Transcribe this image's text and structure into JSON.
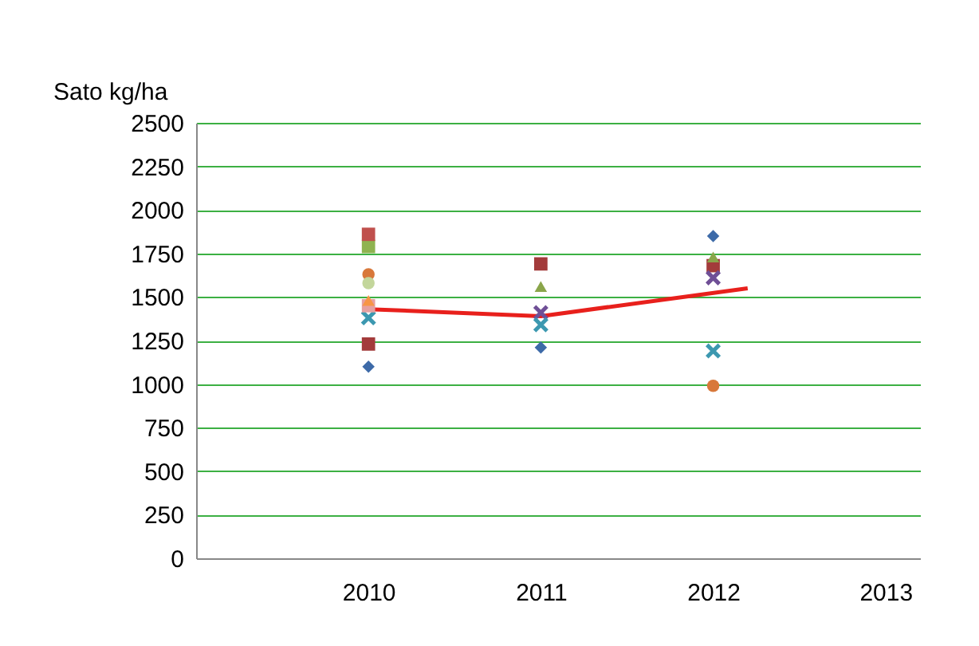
{
  "chart_data": {
    "type": "scatter",
    "ylabel": "Sato kg/ha",
    "xlim": [
      2009,
      2013.2
    ],
    "xticks": [
      2010,
      2011,
      2012,
      2013
    ],
    "ylim": [
      0,
      2500
    ],
    "yticks": [
      0,
      250,
      500,
      750,
      1000,
      1250,
      1500,
      1750,
      2000,
      2250,
      2500
    ],
    "grid": "y",
    "series": [
      {
        "color": "#3d6aa8",
        "marker": "diamond",
        "x": [
          2010,
          2011,
          2012
        ],
        "values": [
          1100,
          1210,
          1850
        ]
      },
      {
        "color": "#a33b3b",
        "marker": "square",
        "x": [
          2010,
          2011,
          2012
        ],
        "values": [
          1230,
          1690,
          1680
        ]
      },
      {
        "color": "#8aa54a",
        "marker": "triangle",
        "x": [
          2011,
          2012
        ],
        "values": [
          1560,
          1730
        ]
      },
      {
        "color": "#6f4f96",
        "marker": "cross",
        "x": [
          2011,
          2012
        ],
        "values": [
          1410,
          1610
        ]
      },
      {
        "color": "#3c98b0",
        "marker": "cross",
        "x": [
          2010,
          2011,
          2012
        ],
        "values": [
          1380,
          1340,
          1190
        ]
      },
      {
        "color": "#d8783a",
        "marker": "circle",
        "x": [
          2010,
          2012
        ],
        "values": [
          1630,
          990
        ]
      },
      {
        "color": "#8fb350",
        "marker": "square",
        "x": [
          2010
        ],
        "values": [
          1790
        ]
      },
      {
        "color": "#c0504d",
        "marker": "square",
        "x": [
          2010
        ],
        "values": [
          1860
        ]
      },
      {
        "color": "#c3d69b",
        "marker": "circle",
        "x": [
          2010
        ],
        "values": [
          1580
        ]
      },
      {
        "color": "#e6a0a0",
        "marker": "square",
        "x": [
          2010
        ],
        "values": [
          1450
        ]
      },
      {
        "color": "#f79646",
        "marker": "triangle",
        "x": [
          2010
        ],
        "values": [
          1480
        ]
      },
      {
        "type": "line",
        "color": "#e8201c",
        "x": [
          2010,
          2011,
          2012.2
        ],
        "values": [
          1430,
          1390,
          1550
        ]
      }
    ]
  }
}
